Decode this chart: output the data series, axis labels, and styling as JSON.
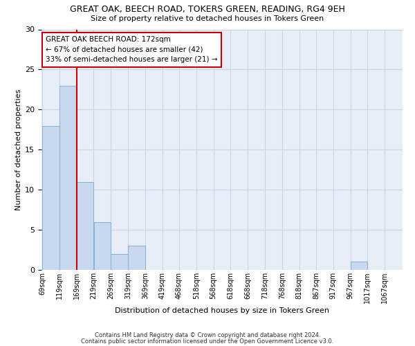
{
  "title_line1": "GREAT OAK, BEECH ROAD, TOKERS GREEN, READING, RG4 9EH",
  "title_line2": "Size of property relative to detached houses in Tokers Green",
  "xlabel": "Distribution of detached houses by size in Tokers Green",
  "ylabel": "Number of detached properties",
  "footnote_line1": "Contains HM Land Registry data © Crown copyright and database right 2024.",
  "footnote_line2": "Contains public sector information licensed under the Open Government Licence v3.0.",
  "annotation_line1": "GREAT OAK BEECH ROAD: 172sqm",
  "annotation_line2": "← 67% of detached houses are smaller (42)",
  "annotation_line3": "33% of semi-detached houses are larger (21) →",
  "bar_starts": [
    69,
    119,
    169,
    219,
    269,
    319,
    369,
    419,
    468,
    518,
    568,
    618,
    668,
    718,
    768,
    818,
    867,
    917,
    967,
    1017,
    1067
  ],
  "bar_values": [
    18,
    23,
    11,
    6,
    2,
    3,
    0,
    0,
    0,
    0,
    0,
    0,
    0,
    0,
    0,
    0,
    0,
    0,
    1,
    0,
    0
  ],
  "bin_width": 50,
  "bar_color": "#c8d8ee",
  "bar_edge_color": "#8aaed4",
  "reference_line_x": 169,
  "reference_line_color": "#cc0000",
  "annotation_box_color": "#cc0000",
  "ylim": [
    0,
    30
  ],
  "yticks": [
    0,
    5,
    10,
    15,
    20,
    25,
    30
  ],
  "grid_color": "#c8d4e8",
  "background_color": "#e8eef8",
  "title1_fontsize": 9,
  "title2_fontsize": 8,
  "annotation_fontsize": 7.5,
  "ylabel_fontsize": 8,
  "xlabel_fontsize": 8,
  "footnote_fontsize": 6,
  "tick_fontsize": 7
}
